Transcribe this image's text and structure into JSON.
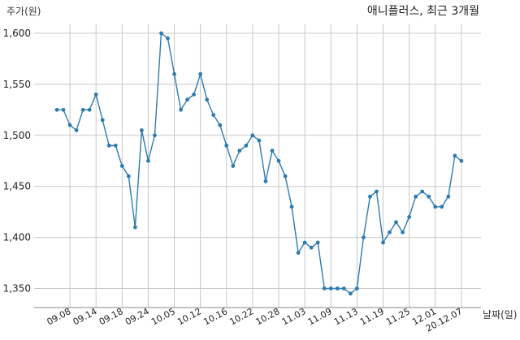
{
  "chart_data": {
    "type": "line",
    "title": "애니플러스, 최근 3개월",
    "ylabel": "주가(원)",
    "xlabel": "날짜(일)",
    "ylim": [
      1330,
      1610
    ],
    "yticks": [
      1350,
      1400,
      1450,
      1500,
      1550,
      1600
    ],
    "ytick_labels": [
      "1,350",
      "1,400",
      "1,450",
      "1,500",
      "1,550",
      "1,600"
    ],
    "xtick_labels": [
      "09.08",
      "09.14",
      "09.18",
      "09.24",
      "10.05",
      "10.12",
      "10.16",
      "10.22",
      "10.28",
      "11.03",
      "11.09",
      "11.13",
      "11.19",
      "11.25",
      "12.01",
      "20.12.07"
    ],
    "xtick_index": [
      2,
      6,
      10,
      14,
      18,
      22,
      26,
      30,
      34,
      38,
      42,
      46,
      50,
      54,
      58,
      62
    ],
    "grid": true,
    "color": "#2e7bb0",
    "series": [
      {
        "values": [
          1525,
          1525,
          1510,
          1505,
          1525,
          1525,
          1540,
          1515,
          1490,
          1490,
          1470,
          1460,
          1410,
          1505,
          1475,
          1500,
          1600,
          1595,
          1560,
          1525,
          1535,
          1540,
          1560,
          1535,
          1520,
          1510,
          1490,
          1470,
          1485,
          1490,
          1500,
          1495,
          1455,
          1485,
          1475,
          1460,
          1430,
          1385,
          1395,
          1390,
          1395,
          1350,
          1350,
          1350,
          1350,
          1345,
          1350,
          1400,
          1440,
          1445,
          1395,
          1405,
          1415,
          1405,
          1420,
          1440,
          1445,
          1440,
          1430,
          1430,
          1440,
          1480,
          1475
        ]
      }
    ]
  }
}
